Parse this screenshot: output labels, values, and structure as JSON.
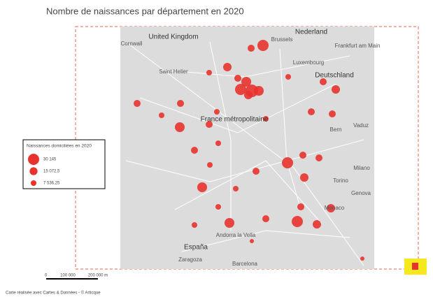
{
  "title": "Nombre de naissances par département en 2020",
  "legend": {
    "title": "Naissances domiciliées en 2020",
    "items": [
      {
        "value": 30145,
        "label": "30 145"
      },
      {
        "value": 15072.5,
        "label": "15 072,5"
      },
      {
        "value": 7536.25,
        "label": "7 536,25"
      }
    ]
  },
  "map_labels": [
    "United Kingdom",
    "Nederland",
    "Brussels",
    "Cornwall",
    "Frankfurt am Main",
    "Saint Helier",
    "Luxembourg",
    "Deutschland",
    "France métropolitaine",
    "Bern",
    "Vaduz",
    "Milano",
    "Torino",
    "Genova",
    "Monaco",
    "Andorra la Vella",
    "España",
    "Zaragoza",
    "Barcelona"
  ],
  "scale_bar": {
    "labels": [
      "0",
      "100 000",
      "200 000 m"
    ]
  },
  "footer": "Carte réalisée avec Cartes & Données - © Articque"
}
